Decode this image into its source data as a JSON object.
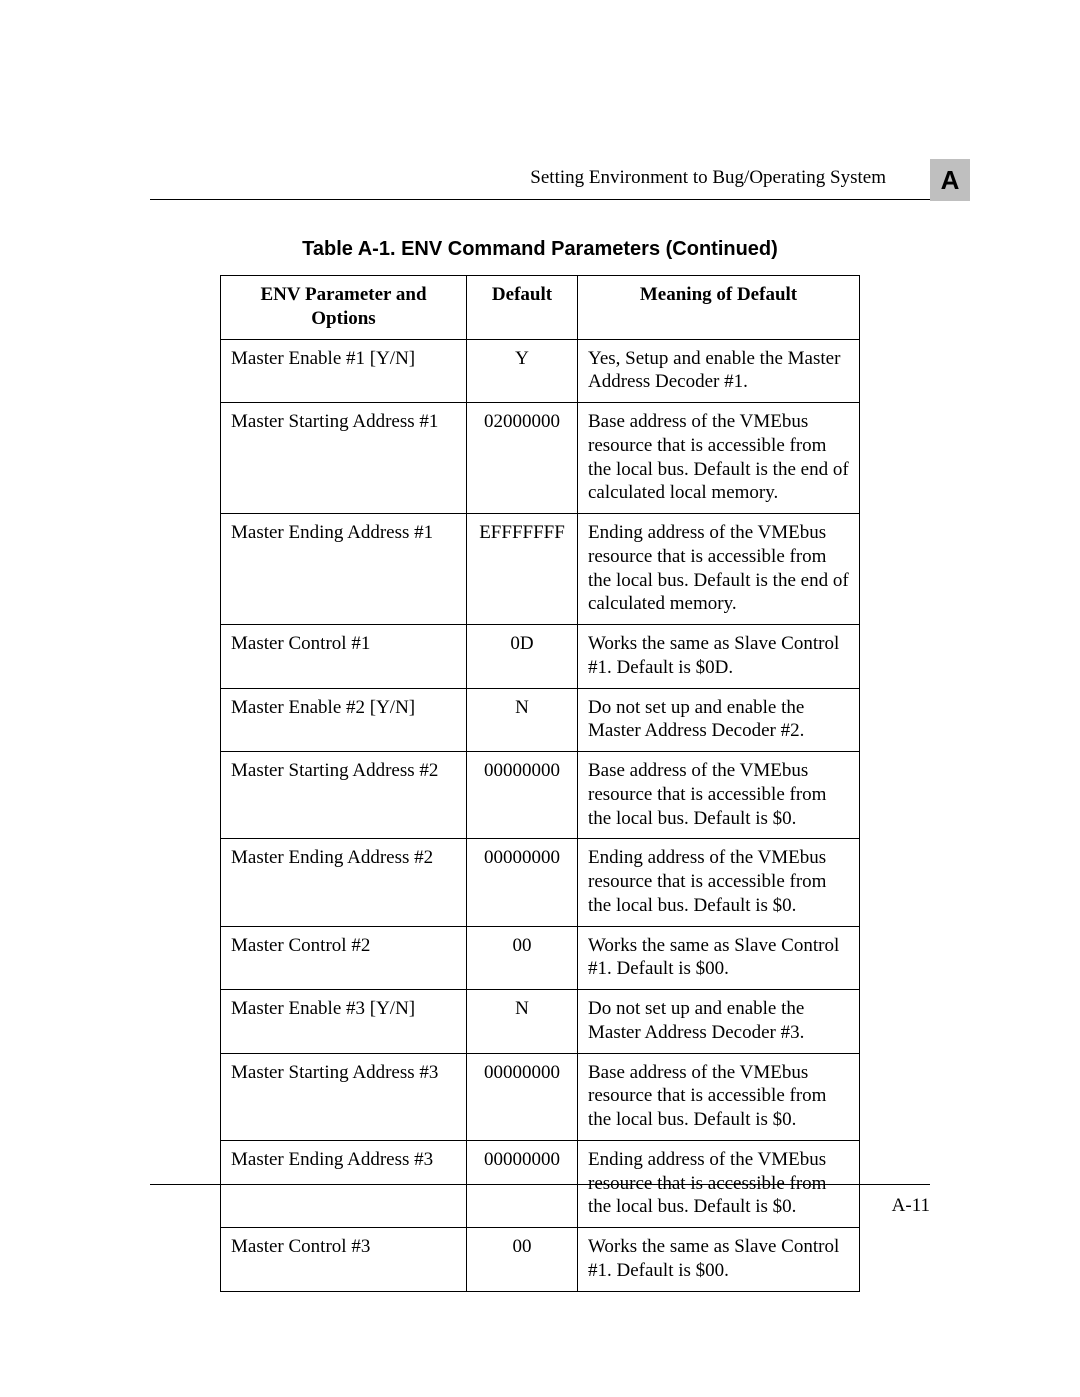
{
  "header": {
    "running_head": "Setting Environment to Bug/Operating System",
    "tab_label": "A"
  },
  "table": {
    "caption": "Table A-1.  ENV Command Parameters (Continued)",
    "columns": [
      "ENV Parameter and Options",
      "Default",
      "Meaning of Default"
    ],
    "rows": [
      {
        "param": "Master Enable #1 [Y/N]",
        "default": "Y",
        "meaning": "Yes, Setup and enable the Master Address Decoder #1."
      },
      {
        "param": "Master Starting Address #1",
        "default": "02000000",
        "meaning": "Base address of the VMEbus resource that is accessible from the local bus. Default is the end of calculated local memory."
      },
      {
        "param": "Master Ending Address #1",
        "default": "EFFFFFFF",
        "meaning": "Ending address of the VMEbus resource that is accessible from the local bus. Default is the end of calculated memory."
      },
      {
        "param": "Master Control #1",
        "default": "0D",
        "meaning": "Works the same as Slave Control #1. Default is $0D."
      },
      {
        "param": "Master Enable #2 [Y/N]",
        "default": "N",
        "meaning": "Do not set up and enable the Master Address Decoder #2."
      },
      {
        "param": "Master Starting Address #2",
        "default": "00000000",
        "meaning": "Base address of the VMEbus resource that is accessible from the local bus. Default is $0."
      },
      {
        "param": "Master Ending Address #2",
        "default": "00000000",
        "meaning": "Ending address of the VMEbus resource that is accessible from the local bus. Default is $0."
      },
      {
        "param": "Master Control #2",
        "default": "00",
        "meaning": "Works the same as Slave Control #1. Default is $00."
      },
      {
        "param": "Master Enable #3 [Y/N]",
        "default": "N",
        "meaning": "Do not set up and enable the Master Address Decoder #3."
      },
      {
        "param": "Master Starting Address #3",
        "default": "00000000",
        "meaning": "Base address of the VMEbus resource that is accessible from the local bus. Default is $0."
      },
      {
        "param": "Master Ending Address #3",
        "default": "00000000",
        "meaning": "Ending address of the VMEbus resource that is accessible from the local bus. Default is $0."
      },
      {
        "param": "Master Control #3",
        "default": "00",
        "meaning": "Works the same as Slave Control #1. Default is $00."
      }
    ]
  },
  "footer": {
    "page_number": "A-11"
  }
}
